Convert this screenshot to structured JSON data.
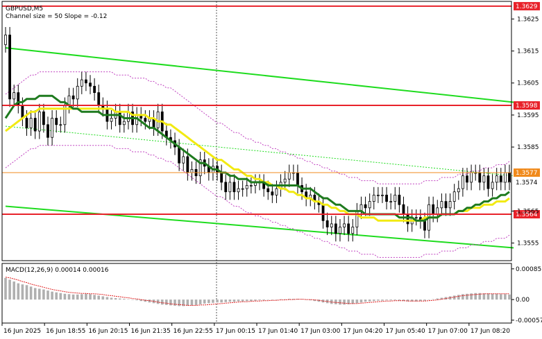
{
  "chart_data": {
    "type": "candlestick",
    "symbol_header": "GBPUSD,M5",
    "subtitle": "Channel size = 50 Slope = -0.12",
    "price_ylim": [
      1.35495,
      1.36305
    ],
    "price_ticks": [
      {
        "label": "1.3625",
        "value": 1.3625
      },
      {
        "label": "1.3615",
        "value": 1.3615
      },
      {
        "label": "1.3605",
        "value": 1.3605
      },
      {
        "label": "1.3595",
        "value": 1.3595
      },
      {
        "label": "1.3585",
        "value": 1.3585
      },
      {
        "label": "1.3565",
        "value": 1.3565
      },
      {
        "label": "1.3555",
        "value": 1.3555
      }
    ],
    "levels": [
      {
        "label": "1.3629",
        "value": 1.3629,
        "color": "#e8222a"
      },
      {
        "label": "1.3598",
        "value": 1.3598,
        "color": "#e8222a"
      },
      {
        "label": "1.3564",
        "value": 1.3564,
        "color": "#e8222a"
      }
    ],
    "last_line": {
      "label": "1.3577",
      "value": 1.3577,
      "color": "#f08a1c"
    },
    "current_price": {
      "label": "1.3574",
      "value": 1.3574
    },
    "time_labels": [
      "16 Jun 2025",
      "16 Jun 18:55",
      "16 Jun 20:15",
      "16 Jun 21:35",
      "16 Jun 22:55",
      "17 Jun 00:15",
      "17 Jun 01:40",
      "17 Jun 03:00",
      "17 Jun 04:20",
      "17 Jun 05:40",
      "17 Jun 07:00",
      "17 Jun 08:20"
    ],
    "channel_upper": {
      "x": [
        0,
        120
      ],
      "y": [
        1.3616,
        1.3599
      ],
      "color": "#1edc1e"
    },
    "channel_lower": {
      "x": [
        0,
        120
      ],
      "y": [
        1.35665,
        1.35535
      ],
      "color": "#1edc1e"
    },
    "channel_mid_dotted": {
      "x": [
        0,
        120
      ],
      "y": [
        1.35915,
        1.3576
      ]
    },
    "candles_close": [
      1.362,
      1.36,
      1.3602,
      1.3598,
      1.3594,
      1.3591,
      1.3594,
      1.359,
      1.3596,
      1.3592,
      1.3588,
      1.3594,
      1.3592,
      1.3592,
      1.3598,
      1.3601,
      1.36,
      1.3604,
      1.3606,
      1.3605,
      1.3604,
      1.3602,
      1.3598,
      1.3597,
      1.3593,
      1.3594,
      1.3596,
      1.3592,
      1.3593,
      1.3596,
      1.3592,
      1.3595,
      1.3594,
      1.3593,
      1.3594,
      1.3591,
      1.3596,
      1.359,
      1.3588,
      1.3587,
      1.3585,
      1.358,
      1.3582,
      1.3577,
      1.3578,
      1.3576,
      1.3581,
      1.3579,
      1.3577,
      1.3579,
      1.3577,
      1.3574,
      1.3571,
      1.3574,
      1.3571,
      1.3572,
      1.3572,
      1.3573,
      1.3573,
      1.3574,
      1.3574,
      1.3572,
      1.3571,
      1.357,
      1.3572,
      1.3574,
      1.3575,
      1.3577,
      1.3577,
      1.3573,
      1.3571,
      1.3569,
      1.357,
      1.3568,
      1.3567,
      1.3562,
      1.356,
      1.3561,
      1.3558,
      1.356,
      1.3561,
      1.3558,
      1.356,
      1.3565,
      1.3567,
      1.3566,
      1.3568,
      1.357,
      1.357,
      1.357,
      1.3568,
      1.3568,
      1.357,
      1.3567,
      1.3564,
      1.3561,
      1.3563,
      1.3563,
      1.3562,
      1.3559,
      1.3567,
      1.3564,
      1.3566,
      1.3568,
      1.3566,
      1.3568,
      1.3571,
      1.3572,
      1.3576,
      1.3574,
      1.3577,
      1.3577,
      1.3574,
      1.3576,
      1.3572,
      1.3574,
      1.3576,
      1.3574,
      1.3577,
      1.3574
    ],
    "candles_open": [
      1.3617,
      1.362,
      1.36,
      1.3602,
      1.3598,
      1.3594,
      1.3591,
      1.3594,
      1.359,
      1.3596,
      1.3592,
      1.3588,
      1.3594,
      1.3592,
      1.3592,
      1.3598,
      1.3601,
      1.36,
      1.3604,
      1.3606,
      1.3605,
      1.3604,
      1.3602,
      1.3598,
      1.3597,
      1.3593,
      1.3594,
      1.3596,
      1.3592,
      1.3593,
      1.3596,
      1.3592,
      1.3595,
      1.3594,
      1.3593,
      1.3594,
      1.3591,
      1.3596,
      1.359,
      1.3588,
      1.3587,
      1.3585,
      1.358,
      1.3582,
      1.3577,
      1.3578,
      1.3576,
      1.3581,
      1.3579,
      1.3577,
      1.3579,
      1.3577,
      1.3574,
      1.3571,
      1.3574,
      1.3571,
      1.3572,
      1.3572,
      1.3573,
      1.3573,
      1.3574,
      1.3574,
      1.3572,
      1.3571,
      1.357,
      1.3572,
      1.3574,
      1.3575,
      1.3577,
      1.3577,
      1.3573,
      1.3571,
      1.3569,
      1.357,
      1.3568,
      1.3567,
      1.3562,
      1.356,
      1.3561,
      1.3558,
      1.356,
      1.3561,
      1.3558,
      1.356,
      1.3565,
      1.3567,
      1.3566,
      1.3568,
      1.357,
      1.357,
      1.357,
      1.3568,
      1.3568,
      1.357,
      1.3567,
      1.3564,
      1.3561,
      1.3563,
      1.3563,
      1.3562,
      1.3559,
      1.3567,
      1.3564,
      1.3566,
      1.3568,
      1.3566,
      1.3568,
      1.3571,
      1.3572,
      1.3576,
      1.3574,
      1.3577,
      1.3577,
      1.3574,
      1.3576,
      1.3572,
      1.3574,
      1.3576,
      1.3574,
      1.3577
    ],
    "ma_fast": [
      1.3594,
      1.3596,
      1.3598,
      1.3599,
      1.3599,
      1.36,
      1.36,
      1.36,
      1.3601,
      1.3601,
      1.3601,
      1.3601,
      1.36,
      1.3599,
      1.3599,
      1.3598,
      1.3597,
      1.3597,
      1.3596,
      1.3596,
      1.3596,
      1.3596,
      1.3596,
      1.3595,
      1.3595,
      1.3595,
      1.3595,
      1.3595,
      1.3594,
      1.3594,
      1.3594,
      1.3594,
      1.3593,
      1.3592,
      1.3591,
      1.3591,
      1.359,
      1.3589,
      1.3588,
      1.3587,
      1.3586,
      1.3585,
      1.3584,
      1.3583,
      1.3582,
      1.3581,
      1.358,
      1.358,
      1.3579,
      1.3578,
      1.3578,
      1.3577,
      1.3577,
      1.3576,
      1.3576,
      1.3575,
      1.3575,
      1.3575,
      1.3574,
      1.3574,
      1.3574,
      1.3574,
      1.3573,
      1.3573,
      1.3573,
      1.3573,
      1.3573,
      1.3573,
      1.3573,
      1.3573,
      1.3572,
      1.3572,
      1.3572,
      1.3571,
      1.357,
      1.3569,
      1.3569,
      1.3568,
      1.3567,
      1.3567,
      1.3566,
      1.3565,
      1.3565,
      1.3565,
      1.3565,
      1.3564,
      1.3564,
      1.3564,
      1.3564,
      1.3564,
      1.3564,
      1.3564,
      1.3564,
      1.3563,
      1.3563,
      1.3563,
      1.3563,
      1.3562,
      1.3562,
      1.3562,
      1.3563,
      1.3563,
      1.3563,
      1.3564,
      1.3564,
      1.3564,
      1.3564,
      1.3565,
      1.3565,
      1.3566,
      1.3566,
      1.3567,
      1.3567,
      1.3568,
      1.3568,
      1.3569,
      1.3569,
      1.357,
      1.357,
      1.3571
    ],
    "ma_slow": [
      1.359,
      1.3591,
      1.3592,
      1.3593,
      1.3594,
      1.3595,
      1.3596,
      1.3596,
      1.3597,
      1.3597,
      1.3597,
      1.3597,
      1.3597,
      1.3597,
      1.3597,
      1.3597,
      1.3597,
      1.3597,
      1.3597,
      1.3597,
      1.3597,
      1.3597,
      1.3597,
      1.3597,
      1.3597,
      1.3597,
      1.3596,
      1.3596,
      1.3596,
      1.3596,
      1.3595,
      1.3595,
      1.3595,
      1.3595,
      1.3594,
      1.3594,
      1.3593,
      1.3593,
      1.3592,
      1.3592,
      1.3591,
      1.359,
      1.3589,
      1.3588,
      1.3587,
      1.3586,
      1.3585,
      1.3584,
      1.3583,
      1.3582,
      1.3581,
      1.3581,
      1.358,
      1.3579,
      1.3578,
      1.3578,
      1.3577,
      1.3576,
      1.3576,
      1.3575,
      1.3575,
      1.3574,
      1.3574,
      1.3573,
      1.3573,
      1.3572,
      1.3572,
      1.3571,
      1.3571,
      1.357,
      1.357,
      1.3569,
      1.3569,
      1.3568,
      1.3568,
      1.3567,
      1.3567,
      1.3566,
      1.3566,
      1.3565,
      1.3565,
      1.3564,
      1.3564,
      1.3564,
      1.3563,
      1.3563,
      1.3563,
      1.3563,
      1.3562,
      1.3562,
      1.3562,
      1.3562,
      1.3562,
      1.3562,
      1.3562,
      1.3562,
      1.3562,
      1.3562,
      1.3562,
      1.3563,
      1.3563,
      1.3563,
      1.3563,
      1.3564,
      1.3564,
      1.3564,
      1.3564,
      1.3565,
      1.3565,
      1.3565,
      1.3566,
      1.3566,
      1.3566,
      1.3567,
      1.3567,
      1.3567,
      1.3568,
      1.3568,
      1.3568,
      1.3569
    ],
    "ma_fast_color": "#1e7a1e",
    "ma_slow_color": "#f2ea12",
    "bollinger_color": "#c040c0",
    "macd_header": "MACD(12,26,9) 0.00014 0.00016",
    "macd_ylim": [
      -0.00065,
      0.001
    ],
    "macd_ticks": [
      {
        "label": "0.00085",
        "value": 0.00085
      },
      {
        "label": "0.00",
        "value": 0.0
      },
      {
        "label": "-0.00057",
        "value": -0.00057
      }
    ],
    "macd_hist": [
      0.0006,
      0.00055,
      0.0005,
      0.00045,
      0.00042,
      0.0004,
      0.00036,
      0.00032,
      0.0003,
      0.00028,
      0.00025,
      0.00022,
      0.0002,
      0.00018,
      0.00016,
      0.00015,
      0.00014,
      0.00014,
      0.00015,
      0.00016,
      0.00015,
      0.00013,
      0.00011,
      9e-05,
      7e-05,
      5e-05,
      4e-05,
      3e-05,
      2e-05,
      1e-05,
      0.0,
      -2e-05,
      -4e-05,
      -6e-05,
      -8e-05,
      -0.0001,
      -0.00012,
      -0.00014,
      -0.00015,
      -0.00016,
      -0.00017,
      -0.00018,
      -0.00018,
      -0.00017,
      -0.00016,
      -0.00015,
      -0.00013,
      -0.00011,
      -0.0001,
      -9e-05,
      -8e-05,
      -8e-05,
      -7e-05,
      -6e-05,
      -6e-05,
      -5e-05,
      -5e-05,
      -4e-05,
      -4e-05,
      -3e-05,
      -2e-05,
      -2e-05,
      -1e-05,
      -1e-05,
      0.0,
      1e-05,
      1e-05,
      2e-05,
      2e-05,
      2e-05,
      1e-05,
      0.0,
      -2e-05,
      -4e-05,
      -6e-05,
      -8e-05,
      -0.0001,
      -0.00012,
      -0.00013,
      -0.00014,
      -0.00014,
      -0.00013,
      -0.00012,
      -0.0001,
      -8e-05,
      -6e-05,
      -5e-05,
      -4e-05,
      -3e-05,
      -3e-05,
      -2e-05,
      -2e-05,
      -2e-05,
      -3e-05,
      -4e-05,
      -5e-05,
      -5e-05,
      -5e-05,
      -4e-05,
      -3e-05,
      -1e-05,
      1e-05,
      3e-05,
      5e-05,
      7e-05,
      9e-05,
      0.00011,
      0.00013,
      0.00015,
      0.00016,
      0.00017,
      0.00018,
      0.00018,
      0.00017,
      0.00017,
      0.00016,
      0.00016,
      0.00015,
      0.00015,
      0.00014
    ],
    "macd_signal": [
      0.00062,
      0.0006,
      0.00057,
      0.00054,
      0.0005,
      0.00047,
      0.00043,
      0.0004,
      0.00037,
      0.00034,
      0.00031,
      0.00028,
      0.00026,
      0.00024,
      0.00022,
      0.0002,
      0.00019,
      0.00018,
      0.00017,
      0.00017,
      0.00016,
      0.00016,
      0.00015,
      0.00014,
      0.00012,
      0.00011,
      9e-05,
      8e-05,
      6e-05,
      5e-05,
      3e-05,
      2e-05,
      0.0,
      -2e-05,
      -3e-05,
      -5e-05,
      -7e-05,
      -9e-05,
      -0.0001,
      -0.00012,
      -0.00013,
      -0.00014,
      -0.00015,
      -0.00016,
      -0.00016,
      -0.00016,
      -0.00015,
      -0.00015,
      -0.00014,
      -0.00013,
      -0.00012,
      -0.00011,
      -0.0001,
      -9e-05,
      -8e-05,
      -7e-05,
      -6e-05,
      -6e-05,
      -5e-05,
      -4e-05,
      -4e-05,
      -3e-05,
      -3e-05,
      -2e-05,
      -2e-05,
      -1e-05,
      -1e-05,
      0.0,
      0.0,
      1e-05,
      1e-05,
      0.0,
      0.0,
      -1e-05,
      -2e-05,
      -4e-05,
      -5e-05,
      -7e-05,
      -8e-05,
      -9e-05,
      -0.0001,
      -0.00011,
      -0.00011,
      -0.00011,
      -0.0001,
      -9e-05,
      -8e-05,
      -7e-05,
      -6e-05,
      -5e-05,
      -4e-05,
      -4e-05,
      -3e-05,
      -3e-05,
      -3e-05,
      -4e-05,
      -4e-05,
      -4e-05,
      -4e-05,
      -4e-05,
      -3e-05,
      -2e-05,
      -1e-05,
      1e-05,
      3e-05,
      5e-05,
      7e-05,
      9e-05,
      0.00011,
      0.00012,
      0.00013,
      0.00014,
      0.00015,
      0.00016,
      0.00016,
      0.00016,
      0.00016,
      0.00016,
      0.00016,
      0.00016
    ],
    "macd_hist_color": "#b0b0b0",
    "macd_signal_color": "#e02020"
  }
}
